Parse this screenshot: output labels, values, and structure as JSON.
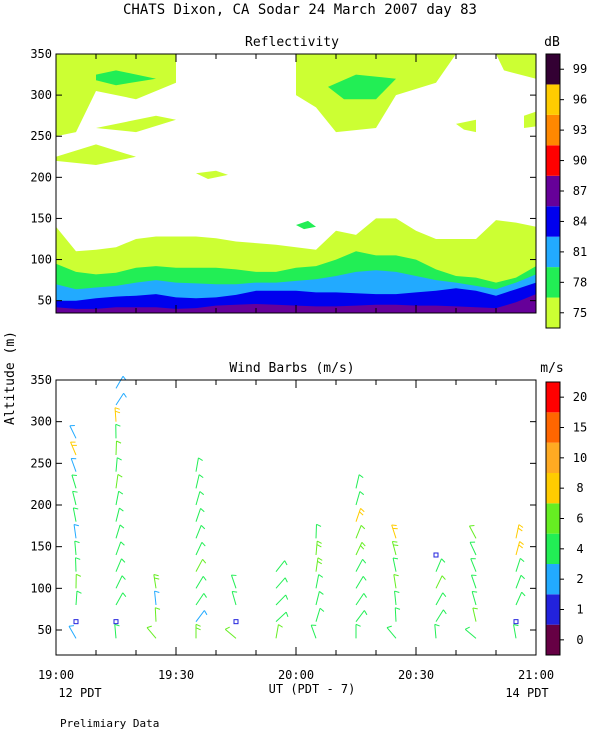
{
  "figure": {
    "title": "CHATS Dixon, CA  Sodar  24 March 2007  day  83",
    "ylabel": "Altitude (m)",
    "xlabel": "UT  (PDT - 7)",
    "left_note": "12 PDT",
    "right_note": "14 PDT",
    "footer": "Prelimiary Data"
  },
  "chart_data": [
    {
      "type": "heatmap",
      "title": "Reflectivity",
      "colorbar_label": "dB",
      "colorbar_ticks": [
        "75",
        "78",
        "81",
        "84",
        "87",
        "90",
        "93",
        "96",
        "99"
      ],
      "colorbar_colors": [
        "#ccff33",
        "#22ee55",
        "#22aaff",
        "#0000ee",
        "#660099",
        "#ff0000",
        "#ff8800",
        "#ffcc00",
        "#330033"
      ],
      "xlim": [
        0,
        120
      ],
      "ylim": [
        35,
        350
      ],
      "x_ticks": [
        "19:00",
        "19:30",
        "20:00",
        "20:30",
        "21:00"
      ],
      "x_tick_values": [
        0,
        30,
        60,
        90,
        120
      ],
      "y_ticks": [
        "50",
        "100",
        "150",
        "200",
        "250",
        "300",
        "350"
      ],
      "y_tick_values": [
        50,
        100,
        150,
        200,
        250,
        300,
        350
      ],
      "x_minutes": [
        0,
        5,
        10,
        15,
        20,
        25,
        30,
        35,
        40,
        45,
        50,
        55,
        60,
        65,
        70,
        75,
        80,
        85,
        90,
        95,
        100,
        105,
        110,
        115,
        120
      ],
      "layers": [
        {
          "level": "75",
          "color": "#ccff33",
          "top": [
            140,
            110,
            112,
            115,
            125,
            128,
            128,
            128,
            126,
            122,
            120,
            118,
            115,
            112,
            135,
            130,
            150,
            150,
            135,
            125,
            125,
            125,
            148,
            145,
            140
          ]
        },
        {
          "level": "78",
          "color": "#22ee55",
          "top": [
            95,
            85,
            82,
            84,
            90,
            92,
            90,
            90,
            90,
            88,
            85,
            85,
            90,
            92,
            100,
            110,
            105,
            105,
            100,
            88,
            80,
            78,
            72,
            78,
            92
          ]
        },
        {
          "level": "81",
          "color": "#22aaff",
          "top": [
            70,
            64,
            66,
            68,
            72,
            75,
            72,
            71,
            70,
            70,
            72,
            72,
            74,
            76,
            80,
            85,
            87,
            85,
            80,
            75,
            72,
            68,
            64,
            72,
            82
          ]
        },
        {
          "level": "84",
          "color": "#0000ee",
          "top": [
            50,
            50,
            53,
            55,
            56,
            58,
            54,
            53,
            54,
            57,
            62,
            62,
            62,
            60,
            60,
            59,
            58,
            58,
            60,
            62,
            65,
            62,
            56,
            64,
            72
          ]
        },
        {
          "level": "87",
          "color": "#660099",
          "top": [
            42,
            40,
            40,
            42,
            42,
            42,
            40,
            41,
            44,
            45,
            46,
            45,
            44,
            43,
            43,
            44,
            45,
            45,
            44,
            44,
            43,
            42,
            41,
            48,
            58
          ]
        }
      ],
      "blobs": [
        {
          "level": "75",
          "points": [
            [
              0,
              350
            ],
            [
              30,
              350
            ],
            [
              30,
              315
            ],
            [
              20,
              295
            ],
            [
              10,
              305
            ],
            [
              5,
              255
            ],
            [
              0,
              250
            ]
          ]
        },
        {
          "level": "75",
          "points": [
            [
              0,
              225
            ],
            [
              10,
              240
            ],
            [
              20,
              225
            ],
            [
              10,
              215
            ],
            [
              0,
              220
            ]
          ]
        },
        {
          "level": "75",
          "points": [
            [
              10,
              260
            ],
            [
              25,
              275
            ],
            [
              30,
              270
            ],
            [
              20,
              255
            ]
          ]
        },
        {
          "level": "75",
          "points": [
            [
              60,
              350
            ],
            [
              100,
              350
            ],
            [
              95,
              315
            ],
            [
              85,
              300
            ],
            [
              80,
              260
            ],
            [
              70,
              255
            ],
            [
              65,
              285
            ],
            [
              60,
              300
            ]
          ]
        },
        {
          "level": "75",
          "points": [
            [
              110,
              350
            ],
            [
              120,
              350
            ],
            [
              120,
              320
            ],
            [
              112,
              330
            ]
          ]
        },
        {
          "level": "75",
          "points": [
            [
              35,
              205
            ],
            [
              40,
              208
            ],
            [
              43,
              203
            ],
            [
              38,
              198
            ]
          ]
        },
        {
          "level": "75",
          "points": [
            [
              100,
              265
            ],
            [
              105,
              270
            ],
            [
              105,
              255
            ],
            [
              102,
              258
            ]
          ]
        },
        {
          "level": "75",
          "points": [
            [
              117,
              260
            ],
            [
              120,
              262
            ],
            [
              120,
              280
            ],
            [
              117,
              275
            ]
          ]
        },
        {
          "level": "78",
          "points": [
            [
              10,
              325
            ],
            [
              15,
              330
            ],
            [
              25,
              320
            ],
            [
              15,
              312
            ],
            [
              10,
              318
            ]
          ]
        },
        {
          "level": "78",
          "points": [
            [
              68,
              310
            ],
            [
              75,
              325
            ],
            [
              85,
              320
            ],
            [
              80,
              295
            ],
            [
              72,
              295
            ]
          ]
        },
        {
          "level": "78",
          "points": [
            [
              60,
              142
            ],
            [
              63,
              147
            ],
            [
              65,
              140
            ],
            [
              62,
              137
            ]
          ]
        }
      ]
    },
    {
      "type": "scatter",
      "title": "Wind Barbs (m/s)",
      "colorbar_label": "m/s",
      "colorbar_ticks": [
        "0",
        "1",
        "2",
        "4",
        "6",
        "8",
        "10",
        "15",
        "20"
      ],
      "colorbar_colors": [
        "#660044",
        "#2222dd",
        "#22aaff",
        "#22ee55",
        "#66ee22",
        "#ffcc00",
        "#ffaa22",
        "#ff6600",
        "#ff0000"
      ],
      "xlim": [
        0,
        120
      ],
      "ylim": [
        20,
        350
      ],
      "x_ticks": [
        "19:00",
        "19:30",
        "20:00",
        "20:30",
        "21:00"
      ],
      "x_tick_values": [
        0,
        30,
        60,
        90,
        120
      ],
      "y_ticks": [
        "50",
        "100",
        "150",
        "200",
        "250",
        "300",
        "350"
      ],
      "y_tick_values": [
        50,
        100,
        150,
        200,
        250,
        300,
        350
      ],
      "columns": [
        {
          "t": 5,
          "dir": 350,
          "speeds": [
            2.5,
            1.2,
            4.5,
            5.2,
            4.6,
            3.8,
            2.5,
            3.2,
            3.4,
            4.2,
            1.5,
            7.5,
            2.5
          ]
        },
        {
          "t": 15,
          "dir": 15,
          "speeds": [
            4.5,
            1.2,
            3.8,
            4.5,
            3.4,
            3.2,
            4.2,
            3.8,
            3.4,
            5.2,
            4.8,
            5.5,
            4.5,
            8.0,
            2.5,
            2.5
          ]
        },
        {
          "t": 25,
          "dir": 340,
          "speeds": [
            5.2,
            5.4,
            1.5,
            6.2
          ]
        },
        {
          "t": 35,
          "dir": 20,
          "speeds": [
            6.2,
            1.5,
            3.2,
            3.8,
            5.2,
            4.6,
            3.4,
            4.3,
            3.2,
            4.5,
            3.4
          ]
        },
        {
          "t": 45,
          "dir": 330,
          "speeds": [
            5.0,
            1.2,
            4.2,
            4.6
          ]
        },
        {
          "t": 55,
          "dir": 30,
          "speeds": [
            5.5,
            4.5,
            3.2,
            4.5,
            3.6
          ]
        },
        {
          "t": 65,
          "dir": 0,
          "speeds": [
            3.4,
            4.2,
            3.8,
            4.6,
            6.5,
            6.8,
            3.2
          ]
        },
        {
          "t": 75,
          "dir": 20,
          "speeds": [
            4.6,
            4.2,
            3.8,
            4.2,
            3.8,
            6.0,
            5.8,
            7.0,
            4.5,
            3.8
          ]
        },
        {
          "t": 85,
          "dir": 340,
          "speeds": [
            4.2,
            4.6,
            4.5,
            5.2,
            3.8,
            6.0,
            8.2
          ]
        },
        {
          "t": 95,
          "dir": 15,
          "speeds": [
            4.3,
            3.6,
            4.6,
            5.2,
            3.8,
            1.2
          ]
        },
        {
          "t": 105,
          "dir": 330,
          "speeds": [
            4.6,
            5.5,
            3.8,
            4.2,
            3.6,
            4.8,
            5.8
          ]
        },
        {
          "t": 115,
          "dir": 10,
          "speeds": [
            4.5,
            1.2,
            4.0,
            4.5,
            4.6,
            8.5,
            8.0
          ]
        }
      ]
    }
  ]
}
